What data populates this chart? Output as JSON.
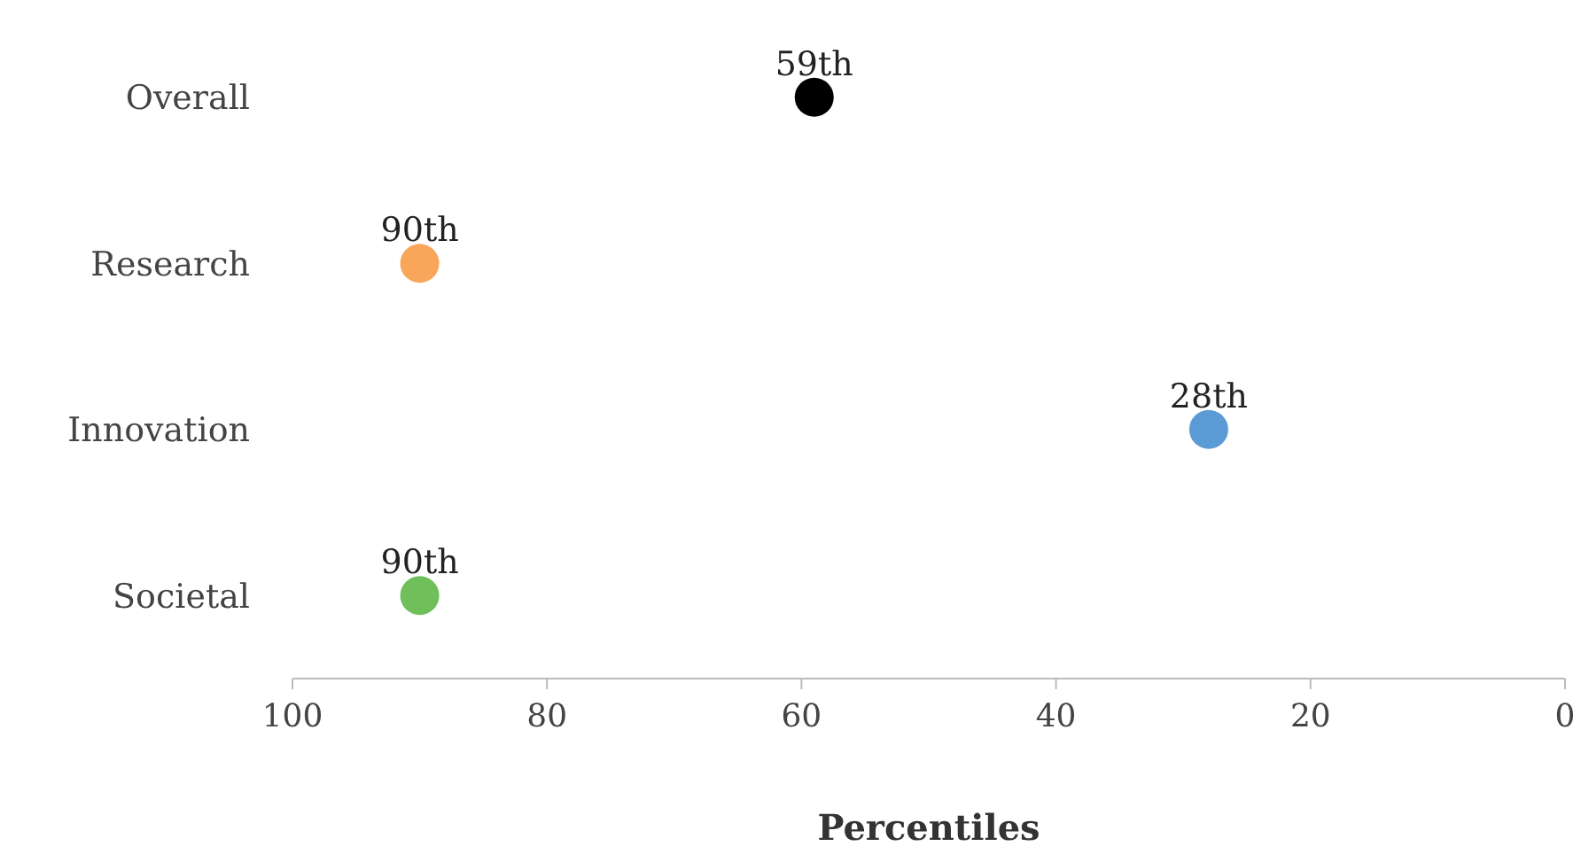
{
  "chart_data": {
    "type": "scatter",
    "orientation": "horizontal",
    "categories": [
      "Overall",
      "Research",
      "Innovation",
      "Societal"
    ],
    "values": [
      59,
      90,
      28,
      90
    ],
    "colors": [
      "#000000",
      "#f9a55a",
      "#5b9bd5",
      "#6fbf5b"
    ],
    "value_labels": [
      "59th",
      "90th",
      "28th",
      "90th"
    ],
    "xlim": [
      100,
      0
    ],
    "xticks": [
      100,
      80,
      60,
      40,
      20,
      0
    ],
    "xlabel": "Percentiles",
    "grid": false,
    "marker": "circle"
  }
}
